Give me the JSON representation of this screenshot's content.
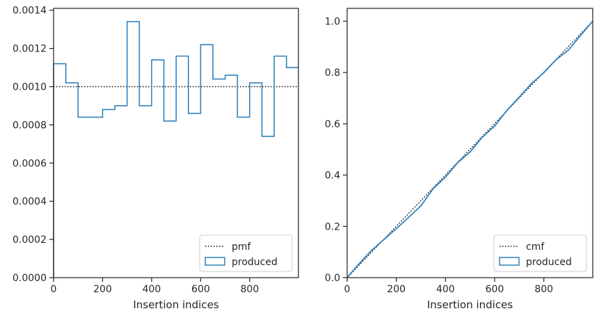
{
  "chart_data": [
    {
      "type": "histogram-step",
      "xlabel": "Insertion indices",
      "ylabel": "",
      "xlim": [
        0,
        999
      ],
      "ylim": [
        0,
        0.00141
      ],
      "xticks": [
        0,
        200,
        400,
        600,
        800
      ],
      "yticks": [
        0.0,
        0.0002,
        0.0004,
        0.0006,
        0.0008,
        0.001,
        0.0012,
        0.0014
      ],
      "ytick_labels": [
        "0.0000",
        "0.0002",
        "0.0004",
        "0.0006",
        "0.0008",
        "0.0010",
        "0.0012",
        "0.0014"
      ],
      "legend_position": "lower-right",
      "series": [
        {
          "name": "pmf",
          "style": "dotted",
          "color": "#000000",
          "x": [
            0,
            999
          ],
          "values": [
            0.001,
            0.001
          ]
        },
        {
          "name": "produced",
          "style": "step",
          "color": "#3182bd",
          "bin_edges": [
            0,
            50,
            100,
            150,
            200,
            250,
            300,
            350,
            400,
            450,
            500,
            550,
            600,
            650,
            700,
            750,
            800,
            850,
            900,
            950,
            999
          ],
          "values": [
            0.00112,
            0.00102,
            0.00084,
            0.00084,
            0.00088,
            0.0009,
            0.00134,
            0.0009,
            0.00114,
            0.00082,
            0.00116,
            0.00086,
            0.00122,
            0.00104,
            0.00106,
            0.00084,
            0.00102,
            0.00074,
            0.00116,
            0.0011
          ]
        }
      ]
    },
    {
      "type": "line",
      "xlabel": "Insertion indices",
      "ylabel": "",
      "xlim": [
        0,
        999
      ],
      "ylim": [
        0,
        1.05
      ],
      "xticks": [
        0,
        200,
        400,
        600,
        800
      ],
      "yticks": [
        0.0,
        0.2,
        0.4,
        0.6,
        0.8,
        1.0
      ],
      "ytick_labels": [
        "0.0",
        "0.2",
        "0.4",
        "0.6",
        "0.8",
        "1.0"
      ],
      "legend_position": "lower-right",
      "series": [
        {
          "name": "cmf",
          "style": "dotted",
          "color": "#000000",
          "x": [
            0,
            999
          ],
          "values": [
            0,
            1.0
          ]
        },
        {
          "name": "produced",
          "style": "line",
          "color": "#3182bd",
          "x": [
            0,
            50,
            100,
            150,
            200,
            250,
            300,
            350,
            400,
            450,
            500,
            550,
            600,
            650,
            700,
            750,
            800,
            850,
            900,
            950,
            999
          ],
          "values": [
            0.0,
            0.056,
            0.107,
            0.149,
            0.191,
            0.235,
            0.28,
            0.347,
            0.392,
            0.449,
            0.49,
            0.548,
            0.591,
            0.652,
            0.704,
            0.757,
            0.799,
            0.85,
            0.887,
            0.945,
            1.0
          ]
        }
      ]
    }
  ]
}
